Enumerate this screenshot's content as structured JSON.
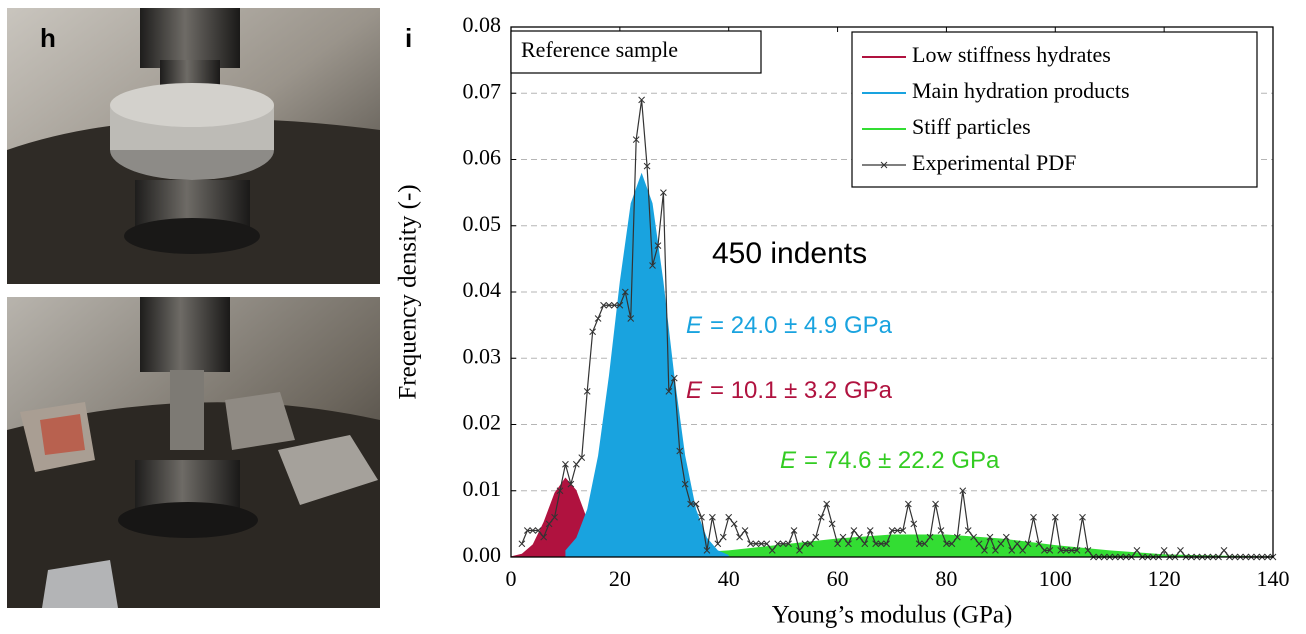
{
  "panels": {
    "left_label": "h",
    "right_label": "i"
  },
  "chart_data": {
    "type": "area",
    "inset_label": "Reference sample",
    "xlabel": "Young’s modulus (GPa)",
    "ylabel": "Frequency density (-)",
    "xlim": [
      0,
      140
    ],
    "xticks": [
      0,
      20,
      40,
      60,
      80,
      100,
      120,
      140
    ],
    "ylim": [
      0,
      0.08
    ],
    "yticks": [
      {
        "value": 0,
        "label": "0.00"
      },
      0.01,
      0.02,
      0.03,
      0.04,
      0.05,
      0.06,
      0.07,
      0.08
    ],
    "grid": true,
    "legend": "upper right",
    "series": [
      {
        "name": "Stiff particles",
        "color": "#33dd33",
        "type": "area",
        "x": [
          0,
          10,
          20,
          30,
          40,
          50,
          60,
          70,
          80,
          90,
          100,
          110,
          120,
          130,
          140
        ],
        "values": [
          0,
          0.0001,
          0.0002,
          0.0005,
          0.001,
          0.0019,
          0.0028,
          0.0034,
          0.0034,
          0.0028,
          0.0018,
          0.001,
          0.0004,
          0.0002,
          0.0001
        ]
      },
      {
        "name": "Low stiffness hydrates",
        "color": "#b0123f",
        "type": "area",
        "x": [
          0,
          2,
          4,
          6,
          8,
          10,
          12,
          14,
          16,
          18
        ],
        "values": [
          0.0001,
          0.0005,
          0.0019,
          0.0053,
          0.0097,
          0.012,
          0.0101,
          0.0057,
          0.0022,
          0.0006
        ]
      },
      {
        "name": "Main hydration products",
        "color": "#19a3df",
        "type": "area",
        "x": [
          10,
          12,
          14,
          16,
          18,
          20,
          22,
          24,
          26,
          28,
          30,
          32,
          34,
          36,
          38,
          40
        ],
        "values": [
          0.001,
          0.0029,
          0.0072,
          0.0153,
          0.0274,
          0.0416,
          0.0534,
          0.058,
          0.0534,
          0.0416,
          0.0274,
          0.0153,
          0.0072,
          0.0029,
          0.001,
          0.0003
        ]
      },
      {
        "name": "Experimental PDF",
        "color": "#333333",
        "type": "line",
        "marker": "x",
        "x": [
          2,
          3,
          4,
          5,
          6,
          7,
          8,
          9,
          10,
          11,
          12,
          13,
          14,
          15,
          16,
          17,
          18,
          19,
          20,
          21,
          22,
          23,
          24,
          25,
          26,
          27,
          28,
          29,
          30,
          31,
          32,
          33,
          34,
          35,
          36,
          37,
          38,
          39,
          40,
          41,
          42,
          43,
          44,
          45,
          46,
          47,
          48,
          49,
          50,
          51,
          52,
          53,
          54,
          55,
          56,
          57,
          58,
          59,
          60,
          61,
          62,
          63,
          64,
          65,
          66,
          67,
          68,
          69,
          70,
          71,
          72,
          73,
          74,
          75,
          76,
          77,
          78,
          79,
          80,
          81,
          82,
          83,
          84,
          85,
          86,
          87,
          88,
          89,
          90,
          91,
          92,
          93,
          94,
          95,
          96,
          97,
          98,
          99,
          100,
          101,
          102,
          103,
          104,
          105,
          106,
          107,
          108,
          109,
          110,
          111,
          112,
          113,
          114,
          115,
          116,
          117,
          118,
          119,
          120,
          121,
          122,
          123,
          124,
          125,
          126,
          127,
          128,
          129,
          130,
          131,
          132,
          133,
          134,
          135,
          136,
          137,
          138,
          139,
          140
        ],
        "values": [
          0.002,
          0.004,
          0.004,
          0.004,
          0.003,
          0.005,
          0.006,
          0.01,
          0.014,
          0.011,
          0.014,
          0.015,
          0.025,
          0.034,
          0.036,
          0.038,
          0.038,
          0.038,
          0.038,
          0.04,
          0.036,
          0.063,
          0.069,
          0.059,
          0.044,
          0.047,
          0.055,
          0.025,
          0.027,
          0.016,
          0.011,
          0.008,
          0.008,
          0.006,
          0.001,
          0.006,
          0.002,
          0.003,
          0.006,
          0.005,
          0.003,
          0.004,
          0.002,
          0.002,
          0.002,
          0.002,
          0.001,
          0.002,
          0.002,
          0.002,
          0.004,
          0.001,
          0.002,
          0.002,
          0.003,
          0.006,
          0.008,
          0.005,
          0.002,
          0.003,
          0.002,
          0.004,
          0.003,
          0.002,
          0.004,
          0.002,
          0.002,
          0.002,
          0.004,
          0.004,
          0.004,
          0.008,
          0.005,
          0.002,
          0.002,
          0.003,
          0.008,
          0.004,
          0.002,
          0.002,
          0.003,
          0.01,
          0.004,
          0.003,
          0.002,
          0.001,
          0.003,
          0.001,
          0.002,
          0.003,
          0.001,
          0.002,
          0.001,
          0.002,
          0.006,
          0.002,
          0.001,
          0.001,
          0.006,
          0.001,
          0.001,
          0.001,
          0.001,
          0.006,
          0.001,
          0,
          0,
          0,
          0,
          0,
          0,
          0,
          0,
          0.001,
          0,
          0,
          0,
          0,
          0.001,
          0,
          0,
          0.001,
          0,
          0,
          0,
          0,
          0,
          0,
          0,
          0.001,
          0,
          0,
          0,
          0,
          0,
          0,
          0,
          0,
          0
        ]
      }
    ],
    "legend_order": [
      1,
      2,
      0,
      3
    ],
    "annotations": [
      {
        "text": "450 indents",
        "color": "#000000"
      },
      {
        "symbol": "E",
        "text": "= 24.0 ± 4.9 GPa",
        "color": "#19a3df"
      },
      {
        "symbol": "E",
        "text": "= 10.1 ± 3.2 GPa",
        "color": "#b0123f"
      },
      {
        "symbol": "E",
        "text": "= 74.6 ± 22.2 GPa",
        "color": "#33cc22"
      }
    ]
  }
}
